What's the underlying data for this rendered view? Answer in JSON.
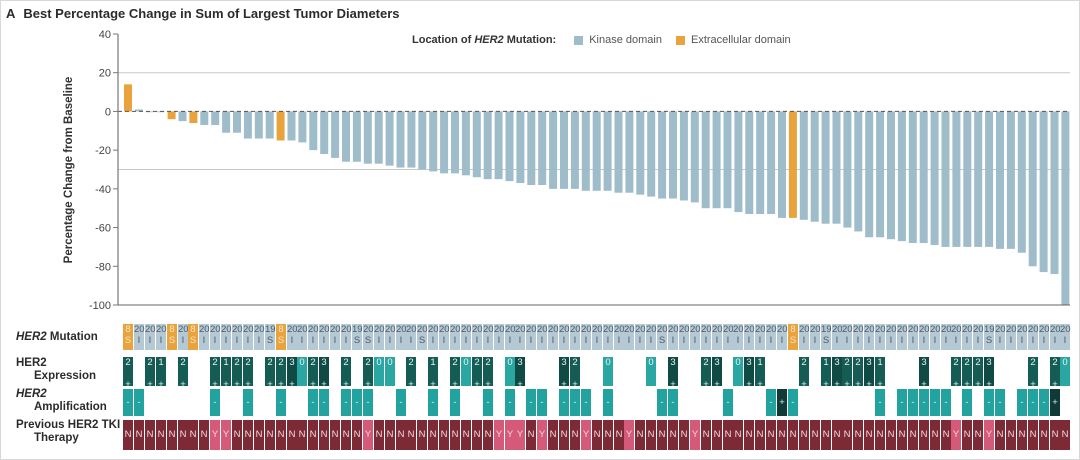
{
  "panel_letter": "A",
  "title": "Best Percentage Change in Sum of Largest Tumor Diameters",
  "legend": {
    "title_prefix": "Location of ",
    "title_gene": "HER2",
    "title_suffix": " Mutation:",
    "items": [
      {
        "label": "Kinase domain",
        "color": "#9fbccb"
      },
      {
        "label": "Extracellular domain",
        "color": "#e8a33c"
      }
    ]
  },
  "row_labels": {
    "mutation": {
      "gene": "HER2",
      "rest": " Mutation"
    },
    "expression": {
      "line1": "HER2",
      "line2": "Expression"
    },
    "amplification": {
      "line1": "HER2",
      "line2": "Amplification"
    },
    "tki": {
      "line1": "Previous HER2 TKI",
      "line2": "Therapy"
    }
  },
  "colors": {
    "kinase": "#9fbccb",
    "extracellular": "#e8a33c",
    "mut_kinase_cell": "#b5c9d5",
    "expr_dark": "#0f4a45",
    "expr_mid": "#155c55",
    "expr_zero": "#2aa6a3",
    "amp_neg": "#22a3a0",
    "amp_pos": "#0f3a37",
    "tki_N": "#7b2a36",
    "tki_Y": "#d55a7a"
  },
  "chart_data": {
    "type": "bar",
    "title": "Best Percentage Change in Sum of Largest Tumor Diameters",
    "xlabel": "",
    "ylabel": "Percentage Change from Baseline",
    "ylim": [
      -100,
      40
    ],
    "yticks": [
      40,
      20,
      0,
      -20,
      -40,
      -60,
      -80,
      -100
    ],
    "reference_lines": [
      20,
      -30
    ],
    "baseline_dashed": 0,
    "legend_position": "top-center",
    "series": [
      {
        "name": "Kinase domain",
        "color": "#9fbccb"
      },
      {
        "name": "Extracellular domain",
        "color": "#e8a33c"
      }
    ],
    "values": [
      14,
      1,
      0,
      0,
      -4,
      -5,
      -6,
      -7,
      -7,
      -11,
      -11,
      -14,
      -14,
      -14,
      -15,
      -15,
      -16,
      -20,
      -22,
      -24,
      -26,
      -26,
      -27,
      -27,
      -28,
      -29,
      -29,
      -30,
      -31,
      -32,
      -32,
      -33,
      -34,
      -35,
      -35,
      -36,
      -37,
      -38,
      -38,
      -40,
      -40,
      -40,
      -41,
      -41,
      -41,
      -42,
      -42,
      -43,
      -44,
      -45,
      -45,
      -46,
      -47,
      -50,
      -50,
      -50,
      -52,
      -53,
      -53,
      -53,
      -55,
      -55,
      -56,
      -57,
      -58,
      -58,
      -60,
      -62,
      -65,
      -65,
      -66,
      -67,
      -68,
      -68,
      -69,
      -70,
      -70,
      -70,
      -70,
      -70,
      -71,
      -71,
      -73,
      -80,
      -83,
      -84,
      -100
    ],
    "domain": [
      "E",
      "K",
      "K",
      "K",
      "E",
      "K",
      "E",
      "K",
      "K",
      "K",
      "K",
      "K",
      "K",
      "K",
      "E",
      "K",
      "K",
      "K",
      "K",
      "K",
      "K",
      "K",
      "K",
      "K",
      "K",
      "K",
      "K",
      "K",
      "K",
      "K",
      "K",
      "K",
      "K",
      "K",
      "K",
      "K",
      "K",
      "K",
      "K",
      "K",
      "K",
      "K",
      "K",
      "K",
      "K",
      "K",
      "K",
      "K",
      "K",
      "K",
      "K",
      "K",
      "K",
      "K",
      "K",
      "K",
      "K",
      "K",
      "K",
      "K",
      "K",
      "E",
      "K",
      "K",
      "K",
      "K",
      "K",
      "K",
      "K",
      "K",
      "K",
      "K",
      "K",
      "K",
      "K",
      "K",
      "K",
      "K",
      "K",
      "K",
      "K",
      "K",
      "K",
      "K",
      "K",
      "K",
      "K"
    ]
  },
  "table": {
    "mutation_top": [
      "8",
      "20",
      "20",
      "20",
      "8",
      "20",
      "8",
      "20",
      "20",
      "20",
      "20",
      "20",
      "20",
      "19",
      "8",
      "20",
      "20",
      "20",
      "20",
      "20",
      "20",
      "19",
      "20",
      "20",
      "20",
      "20",
      "20",
      "20",
      "20",
      "20",
      "20",
      "20",
      "20",
      "20",
      "20",
      "20",
      "20",
      "20",
      "20",
      "20",
      "20",
      "20",
      "20",
      "20",
      "20",
      "20",
      "20",
      "20",
      "20",
      "20",
      "20",
      "20",
      "20",
      "20",
      "20",
      "20",
      "20",
      "20",
      "20",
      "20",
      "20",
      "8",
      "20",
      "20",
      "19",
      "20",
      "20",
      "20",
      "20",
      "20",
      "20",
      "20",
      "20",
      "20",
      "20",
      "20",
      "20",
      "20",
      "20",
      "19",
      "20",
      "20",
      "20",
      "20",
      "20",
      "20",
      "20"
    ],
    "mutation_bottom": [
      "S",
      "I",
      "I",
      "I",
      "S",
      "I",
      "S",
      "I",
      "I",
      "I",
      "I",
      "I",
      "I",
      "S",
      "S",
      "I",
      "I",
      "I",
      "I",
      "I",
      "I",
      "S",
      "S",
      "I",
      "I",
      "I",
      "I",
      "S",
      "I",
      "I",
      "I",
      "I",
      "I",
      "I",
      "I",
      "I",
      "I",
      "I",
      "I",
      "I",
      "I",
      "I",
      "I",
      "I",
      "I",
      "I",
      "I",
      "I",
      "I",
      "S",
      "I",
      "I",
      "I",
      "I",
      "I",
      "I",
      "I",
      "I",
      "I",
      "I",
      "I",
      "S",
      "I",
      "I",
      "S",
      "I",
      "I",
      "I",
      "I",
      "I",
      "I",
      "I",
      "I",
      "I",
      "I",
      "I",
      "I",
      "I",
      "I",
      "S",
      "I",
      "I",
      "I",
      "I",
      "I",
      "I",
      "I"
    ],
    "expression": [
      "2+",
      "",
      "2+",
      "1+",
      "",
      "2+",
      "",
      "",
      "2+",
      "1+",
      "2+",
      "2+",
      "",
      "2+",
      "2+",
      "3+",
      "0",
      "2+",
      "3+",
      "",
      "2+",
      "",
      "2+",
      "0",
      "0",
      "",
      "2+",
      "",
      "1+",
      "",
      "2+",
      "0",
      "2+",
      "2+",
      "",
      "0",
      "3+",
      "",
      "",
      "",
      "3+",
      "2+",
      "",
      "",
      "0",
      "",
      "",
      "",
      "0",
      "",
      "3+",
      "",
      "",
      "2+",
      "3+",
      "",
      "0",
      "3+",
      "1+",
      "",
      "",
      "",
      "2+",
      "",
      "1+",
      "3+",
      "2+",
      "2+",
      "3+",
      "1+",
      "",
      "",
      "",
      "3+",
      "",
      "",
      "2+",
      "2+",
      "2+",
      "3+",
      "",
      "",
      "",
      "2+",
      "",
      "2+",
      "0"
    ],
    "amplification": [
      "-",
      "-",
      "",
      "",
      "",
      "",
      "",
      "",
      "-",
      "",
      "",
      "-",
      "",
      "",
      "-",
      "",
      "",
      "-",
      "-",
      "",
      "-",
      "-",
      "-",
      "",
      "",
      "-",
      "",
      "",
      "-",
      "",
      "-",
      "",
      "",
      "-",
      "",
      "-",
      "",
      "-",
      "-",
      "",
      "-",
      "-",
      "-",
      "",
      "-",
      "",
      "",
      "",
      "",
      "-",
      "-",
      "",
      "",
      "",
      "",
      "-",
      "",
      "",
      "",
      "-",
      "+",
      "-",
      "",
      "",
      "",
      "",
      "",
      "",
      "",
      "-",
      "",
      "-",
      "-",
      "-",
      "-",
      "-",
      "",
      "-",
      "",
      "-",
      "-",
      "",
      "-",
      "-",
      "-",
      "+",
      ""
    ],
    "tki": [
      "N",
      "N",
      "N",
      "N",
      "N",
      "N",
      "N",
      "N",
      "Y",
      "Y",
      "N",
      "N",
      "N",
      "N",
      "N",
      "N",
      "N",
      "N",
      "N",
      "N",
      "N",
      "N",
      "Y",
      "N",
      "N",
      "N",
      "N",
      "N",
      "N",
      "N",
      "N",
      "N",
      "N",
      "N",
      "Y",
      "Y",
      "Y",
      "N",
      "Y",
      "N",
      "N",
      "N",
      "Y",
      "N",
      "N",
      "N",
      "Y",
      "N",
      "N",
      "N",
      "N",
      "N",
      "Y",
      "N",
      "N",
      "N",
      "N",
      "N",
      "N",
      "N",
      "N",
      "N",
      "N",
      "N",
      "N",
      "N",
      "N",
      "N",
      "N",
      "N",
      "N",
      "N",
      "N",
      "N",
      "N",
      "N",
      "Y",
      "N",
      "N",
      "Y",
      "N",
      "N",
      "N",
      "N",
      "N",
      "N",
      "N"
    ]
  }
}
